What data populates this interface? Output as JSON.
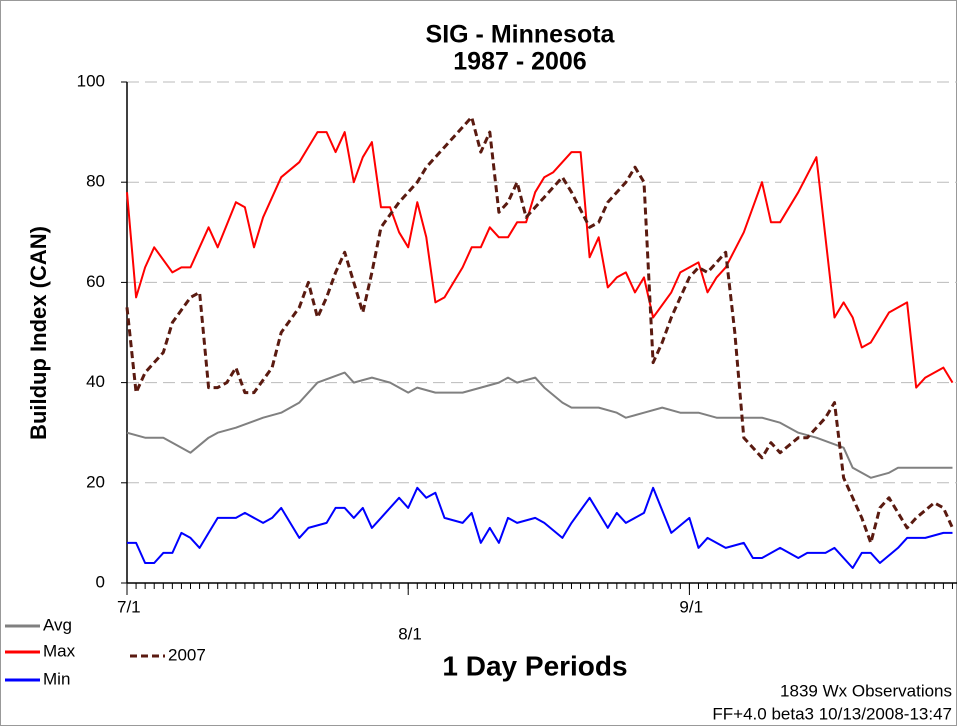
{
  "chart_data": {
    "type": "line",
    "title": "SIG - Minnesota",
    "subtitle": "1987 - 2006",
    "xlabel": "1 Day Periods",
    "ylabel": "Buildup Index (CAN)",
    "annotations": [
      "1839 Wx Observations",
      "FF+4.0 beta3 10/13/2008-13:47"
    ],
    "xlim": [
      0,
      91.5
    ],
    "xticks": [
      {
        "value": 0,
        "label": "7/1"
      },
      {
        "value": 31,
        "label": "8/1"
      },
      {
        "value": 62,
        "label": "9/1"
      }
    ],
    "ylim": [
      0,
      100
    ],
    "yticks": [
      0,
      20,
      40,
      60,
      80,
      100
    ],
    "grid": true,
    "series": [
      {
        "name": "Avg",
        "color": "#808080",
        "x": [
          0,
          2,
          4,
          5,
          7,
          9,
          10,
          12,
          15,
          17,
          19,
          21,
          24,
          25,
          27,
          29,
          31,
          32,
          34,
          37,
          39,
          41,
          42,
          43,
          45,
          46,
          48,
          49,
          52,
          54,
          55,
          57,
          59,
          61,
          63,
          65,
          68,
          70,
          72,
          74,
          76,
          79,
          80,
          82,
          84,
          85,
          87,
          90,
          91
        ],
        "values": [
          30,
          29,
          29,
          28,
          26,
          29,
          30,
          31,
          33,
          34,
          36,
          40,
          42,
          40,
          41,
          40,
          38,
          39,
          38,
          38,
          39,
          40,
          41,
          40,
          41,
          39,
          36,
          35,
          35,
          34,
          33,
          34,
          35,
          34,
          34,
          33,
          33,
          33,
          32,
          30,
          29,
          27,
          23,
          21,
          22,
          23,
          23,
          23,
          23
        ]
      },
      {
        "name": "Max",
        "color": "#ff0000",
        "x": [
          0,
          1,
          2,
          3,
          5,
          6,
          7,
          9,
          10,
          12,
          13,
          14,
          15,
          17,
          19,
          20,
          21,
          22,
          23,
          24,
          25,
          26,
          27,
          28,
          29,
          30,
          31,
          32,
          33,
          34,
          35,
          37,
          38,
          39,
          40,
          41,
          42,
          43,
          44,
          45,
          46,
          47,
          49,
          50,
          51,
          52,
          53,
          54,
          55,
          56,
          57,
          58,
          60,
          61,
          62,
          63,
          64,
          65,
          66,
          68,
          70,
          71,
          72,
          74,
          76,
          78,
          79,
          80,
          81,
          82,
          84,
          86,
          87,
          88,
          90,
          91
        ],
        "values": [
          78,
          57,
          63,
          67,
          62,
          63,
          63,
          71,
          67,
          76,
          75,
          67,
          73,
          81,
          84,
          87,
          90,
          90,
          86,
          90,
          80,
          85,
          88,
          75,
          75,
          70,
          67,
          76,
          69,
          56,
          57,
          63,
          67,
          67,
          71,
          69,
          69,
          72,
          72,
          78,
          81,
          82,
          86,
          86,
          65,
          69,
          59,
          61,
          62,
          58,
          61,
          53,
          58,
          62,
          63,
          64,
          58,
          61,
          63,
          70,
          80,
          72,
          72,
          78,
          85,
          53,
          56,
          53,
          47,
          48,
          54,
          56,
          39,
          41,
          43,
          40
        ]
      },
      {
        "name": "Min",
        "color": "#0000ff",
        "x": [
          0,
          1,
          2,
          3,
          4,
          5,
          6,
          7,
          8,
          9,
          10,
          12,
          13,
          15,
          16,
          17,
          19,
          20,
          22,
          23,
          24,
          25,
          26,
          27,
          28,
          30,
          31,
          32,
          33,
          34,
          35,
          37,
          38,
          39,
          40,
          41,
          42,
          43,
          45,
          46,
          48,
          49,
          51,
          53,
          54,
          55,
          57,
          58,
          60,
          62,
          63,
          64,
          66,
          68,
          69,
          70,
          72,
          74,
          75,
          77,
          78,
          80,
          81,
          82,
          83,
          85,
          86,
          88,
          90,
          91
        ],
        "values": [
          8,
          8,
          4,
          4,
          6,
          6,
          10,
          9,
          7,
          10,
          13,
          13,
          14,
          12,
          13,
          15,
          9,
          11,
          12,
          15,
          15,
          13,
          15,
          11,
          13,
          17,
          15,
          19,
          17,
          18,
          13,
          12,
          14,
          8,
          11,
          8,
          13,
          12,
          13,
          12,
          9,
          12,
          17,
          11,
          14,
          12,
          14,
          19,
          10,
          13,
          7,
          9,
          7,
          8,
          5,
          5,
          7,
          5,
          6,
          6,
          7,
          3,
          6,
          6,
          4,
          7,
          9,
          9,
          10,
          10
        ]
      },
      {
        "name": "2007",
        "color": "#5a1a10",
        "dashed": true,
        "x": [
          0,
          1,
          2,
          4,
          5,
          7,
          8,
          9,
          10,
          11,
          12,
          13,
          14,
          16,
          17,
          19,
          20,
          21,
          22,
          23,
          24,
          25,
          26,
          27,
          28,
          30,
          31,
          32,
          33,
          35,
          37,
          38,
          39,
          40,
          41,
          42,
          43,
          44,
          45,
          46,
          47,
          48,
          49,
          51,
          52,
          53,
          55,
          56,
          57,
          58,
          59,
          60,
          61,
          62,
          63,
          64,
          65,
          66,
          67,
          68,
          70,
          71,
          72,
          74,
          75,
          77,
          78,
          79,
          81,
          82,
          83,
          84,
          86,
          87,
          89,
          90,
          91
        ],
        "values": [
          55,
          38,
          42,
          46,
          52,
          57,
          58,
          39,
          39,
          40,
          43,
          38,
          38,
          43,
          50,
          55,
          60,
          53,
          57,
          62,
          66,
          60,
          54,
          62,
          71,
          76,
          78,
          80,
          83,
          87,
          91,
          93,
          86,
          90,
          74,
          76,
          80,
          73,
          75,
          77,
          79,
          81,
          78,
          71,
          72,
          76,
          80,
          83,
          80,
          44,
          48,
          53,
          57,
          61,
          63,
          62,
          64,
          66,
          50,
          29,
          25,
          28,
          26,
          29,
          29,
          33,
          36,
          21,
          13,
          8,
          15,
          17,
          11,
          13,
          16,
          15,
          11
        ]
      }
    ]
  }
}
